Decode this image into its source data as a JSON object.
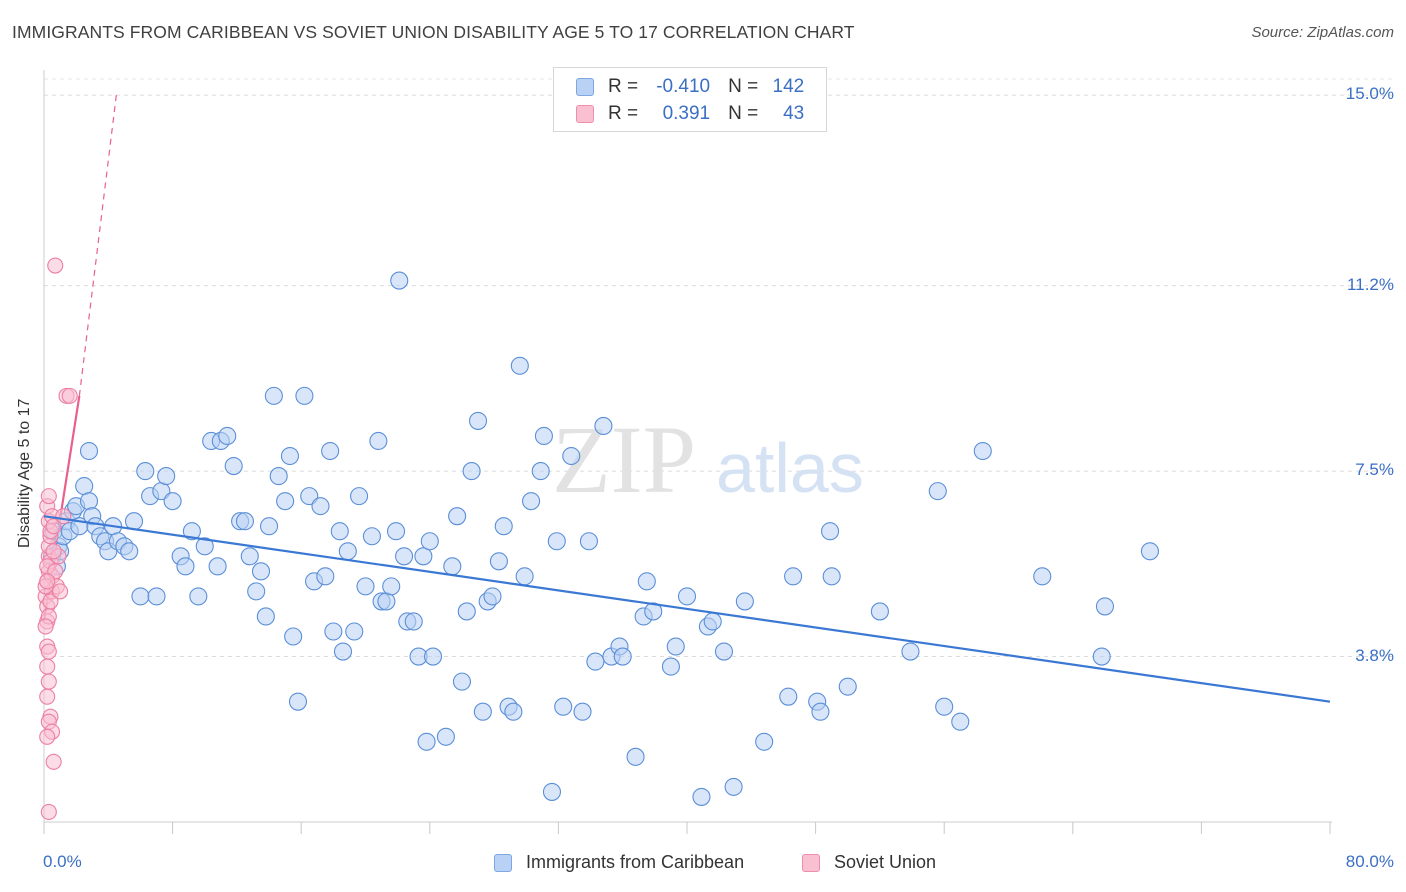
{
  "title": "IMMIGRANTS FROM CARIBBEAN VS SOVIET UNION DISABILITY AGE 5 TO 17 CORRELATION CHART",
  "source": "Source: ZipAtlas.com",
  "watermark": {
    "zip": "ZIP",
    "atlas": "atlas"
  },
  "legend": {
    "r_label": "R =",
    "n_label": "N =",
    "rows": [
      {
        "r": "-0.410",
        "n": "142"
      },
      {
        "r": "0.391",
        "n": "43"
      }
    ]
  },
  "bottom_legend": [
    "Immigrants from Caribbean",
    "Soviet Union"
  ],
  "colors": {
    "blue": "#5b8fd8",
    "blue_fill": "#b9d1f4",
    "blue_line": "#3a78d4",
    "pink": "#ec7fa2",
    "pink_fill": "#f9c0d1",
    "pink_line": "#e8608c",
    "tick_text": "#3b6fc4"
  },
  "chart_data": {
    "type": "scatter",
    "ylabel": "Disability Age 5 to 17",
    "x_tick_labels": [
      "0.0%",
      "80.0%"
    ],
    "y_tick_labels": [
      "3.8%",
      "7.5%",
      "11.2%",
      "15.0%"
    ],
    "xlim": [
      0,
      80
    ],
    "ylim": [
      0.5,
      15.5
    ],
    "y_ticks": [
      3.8,
      7.5,
      11.2,
      15.0
    ],
    "grid": "horizontal dashed",
    "series": [
      {
        "name": "Immigrants from Caribbean",
        "trend": {
          "x": [
            0,
            80
          ],
          "y": [
            6.6,
            2.9
          ]
        },
        "points": [
          [
            0.5,
            5.8
          ],
          [
            0.6,
            6.3
          ],
          [
            0.8,
            5.6
          ],
          [
            0.9,
            6.0
          ],
          [
            1.0,
            5.9
          ],
          [
            1.2,
            6.2
          ],
          [
            1.4,
            6.5
          ],
          [
            1.6,
            6.3
          ],
          [
            1.8,
            6.7
          ],
          [
            2.0,
            6.8
          ],
          [
            2.2,
            6.4
          ],
          [
            2.5,
            7.2
          ],
          [
            2.8,
            6.9
          ],
          [
            3.0,
            6.6
          ],
          [
            3.2,
            6.4
          ],
          [
            3.5,
            6.2
          ],
          [
            3.8,
            6.1
          ],
          [
            4.0,
            5.9
          ],
          [
            4.3,
            6.4
          ],
          [
            4.6,
            6.1
          ],
          [
            2.8,
            7.9
          ],
          [
            5.0,
            6.0
          ],
          [
            5.3,
            5.9
          ],
          [
            5.6,
            6.5
          ],
          [
            6.0,
            5.0
          ],
          [
            6.3,
            7.5
          ],
          [
            6.6,
            7.0
          ],
          [
            7.0,
            5.0
          ],
          [
            7.3,
            7.1
          ],
          [
            7.6,
            7.4
          ],
          [
            8.0,
            6.9
          ],
          [
            8.5,
            5.8
          ],
          [
            8.8,
            5.6
          ],
          [
            9.2,
            6.3
          ],
          [
            9.6,
            5.0
          ],
          [
            10.0,
            6.0
          ],
          [
            10.4,
            8.1
          ],
          [
            10.8,
            5.6
          ],
          [
            11.0,
            8.1
          ],
          [
            11.4,
            8.2
          ],
          [
            11.8,
            7.6
          ],
          [
            12.2,
            6.5
          ],
          [
            12.5,
            6.5
          ],
          [
            12.8,
            5.8
          ],
          [
            13.2,
            5.1
          ],
          [
            13.5,
            5.5
          ],
          [
            13.8,
            4.6
          ],
          [
            14.0,
            6.4
          ],
          [
            14.3,
            9.0
          ],
          [
            14.6,
            7.4
          ],
          [
            15.0,
            6.9
          ],
          [
            15.3,
            7.8
          ],
          [
            15.5,
            4.2
          ],
          [
            15.8,
            2.9
          ],
          [
            16.2,
            9.0
          ],
          [
            16.5,
            7.0
          ],
          [
            16.8,
            5.3
          ],
          [
            17.2,
            6.8
          ],
          [
            17.5,
            5.4
          ],
          [
            17.8,
            7.9
          ],
          [
            18.0,
            4.3
          ],
          [
            18.4,
            6.3
          ],
          [
            18.6,
            3.9
          ],
          [
            18.9,
            5.9
          ],
          [
            19.3,
            4.3
          ],
          [
            19.6,
            7.0
          ],
          [
            20.0,
            5.2
          ],
          [
            20.4,
            6.2
          ],
          [
            20.8,
            8.1
          ],
          [
            21.0,
            4.9
          ],
          [
            21.3,
            4.9
          ],
          [
            21.6,
            5.2
          ],
          [
            21.9,
            6.3
          ],
          [
            22.1,
            11.3
          ],
          [
            22.4,
            5.8
          ],
          [
            22.6,
            4.5
          ],
          [
            23.0,
            4.5
          ],
          [
            23.3,
            3.8
          ],
          [
            23.6,
            5.8
          ],
          [
            23.8,
            2.1
          ],
          [
            24.0,
            6.1
          ],
          [
            24.2,
            3.8
          ],
          [
            25.0,
            2.2
          ],
          [
            25.4,
            5.6
          ],
          [
            25.7,
            6.6
          ],
          [
            26.0,
            3.3
          ],
          [
            26.3,
            4.7
          ],
          [
            26.6,
            7.5
          ],
          [
            27.0,
            8.5
          ],
          [
            27.3,
            2.7
          ],
          [
            27.6,
            4.9
          ],
          [
            27.9,
            5.0
          ],
          [
            28.3,
            5.7
          ],
          [
            28.6,
            6.4
          ],
          [
            28.9,
            2.8
          ],
          [
            29.2,
            2.7
          ],
          [
            29.6,
            9.6
          ],
          [
            29.9,
            5.4
          ],
          [
            30.3,
            6.9
          ],
          [
            30.9,
            7.5
          ],
          [
            31.1,
            8.2
          ],
          [
            31.6,
            1.1
          ],
          [
            31.9,
            6.1
          ],
          [
            32.3,
            2.8
          ],
          [
            32.8,
            7.8
          ],
          [
            33.5,
            2.7
          ],
          [
            33.9,
            6.1
          ],
          [
            34.3,
            3.7
          ],
          [
            34.8,
            8.4
          ],
          [
            35.3,
            3.8
          ],
          [
            35.8,
            4.0
          ],
          [
            36.0,
            3.8
          ],
          [
            36.8,
            1.8
          ],
          [
            37.3,
            4.6
          ],
          [
            37.5,
            5.3
          ],
          [
            37.9,
            4.7
          ],
          [
            39.0,
            3.6
          ],
          [
            39.3,
            4.0
          ],
          [
            40.0,
            5.0
          ],
          [
            40.9,
            1.0
          ],
          [
            41.3,
            4.4
          ],
          [
            41.6,
            4.5
          ],
          [
            42.3,
            3.9
          ],
          [
            42.9,
            1.2
          ],
          [
            43.6,
            4.9
          ],
          [
            44.8,
            2.1
          ],
          [
            46.3,
            3.0
          ],
          [
            46.6,
            5.4
          ],
          [
            48.1,
            2.9
          ],
          [
            48.3,
            2.7
          ],
          [
            48.9,
            6.3
          ],
          [
            49.0,
            5.4
          ],
          [
            50.0,
            3.2
          ],
          [
            52.0,
            4.7
          ],
          [
            53.9,
            3.9
          ],
          [
            55.6,
            7.1
          ],
          [
            56.0,
            2.8
          ],
          [
            57.0,
            2.5
          ],
          [
            58.4,
            7.9
          ],
          [
            62.1,
            5.4
          ],
          [
            65.8,
            3.8
          ],
          [
            66.0,
            4.8
          ],
          [
            68.8,
            5.9
          ]
        ]
      },
      {
        "name": "Soviet Union",
        "trend": {
          "x": [
            0,
            2.2
          ],
          "y": [
            4.5,
            9.0
          ],
          "extended_to": [
            4.5,
            15.0
          ]
        },
        "points": [
          [
            0.1,
            5.0
          ],
          [
            0.2,
            5.3
          ],
          [
            0.2,
            4.8
          ],
          [
            0.3,
            5.5
          ],
          [
            0.3,
            5.8
          ],
          [
            0.3,
            6.0
          ],
          [
            0.4,
            6.2
          ],
          [
            0.4,
            5.7
          ],
          [
            0.5,
            5.4
          ],
          [
            0.5,
            5.1
          ],
          [
            0.2,
            4.5
          ],
          [
            0.3,
            4.6
          ],
          [
            0.4,
            4.9
          ],
          [
            0.2,
            5.6
          ],
          [
            0.3,
            6.5
          ],
          [
            0.2,
            6.8
          ],
          [
            0.3,
            7.0
          ],
          [
            0.5,
            6.6
          ],
          [
            0.4,
            6.3
          ],
          [
            0.6,
            6.4
          ],
          [
            0.2,
            4.0
          ],
          [
            0.3,
            3.9
          ],
          [
            0.2,
            3.6
          ],
          [
            0.3,
            3.3
          ],
          [
            0.2,
            3.0
          ],
          [
            0.4,
            2.6
          ],
          [
            0.3,
            2.5
          ],
          [
            0.5,
            2.3
          ],
          [
            0.2,
            2.2
          ],
          [
            0.6,
            1.7
          ],
          [
            0.3,
            0.7
          ],
          [
            0.7,
            11.6
          ],
          [
            1.4,
            9.0
          ],
          [
            1.6,
            9.0
          ],
          [
            0.8,
            5.2
          ],
          [
            1.0,
            5.1
          ],
          [
            1.2,
            6.6
          ],
          [
            0.9,
            5.8
          ],
          [
            0.1,
            5.2
          ],
          [
            0.1,
            4.4
          ],
          [
            0.7,
            5.5
          ],
          [
            0.6,
            5.9
          ],
          [
            0.2,
            5.3
          ]
        ]
      }
    ]
  }
}
